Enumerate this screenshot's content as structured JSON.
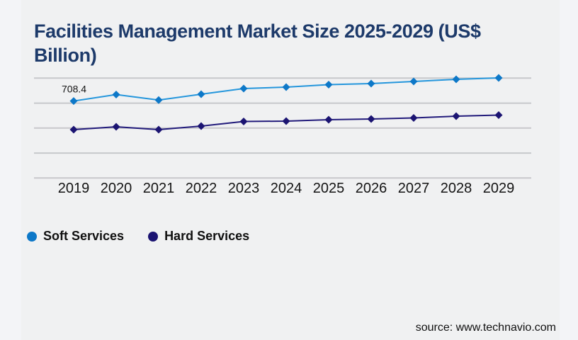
{
  "title": "Facilities Management Market Size 2025-2029 (US$\nBillion)",
  "source_label": "source: www.technavio.com",
  "colors": {
    "background": "#f3f4f7",
    "panel": "#f0f1f2",
    "gridline": "#c7c8cb",
    "title_text": "#1d3a6a",
    "soft_line": "#2496dc",
    "soft_marker": "#0d78c8",
    "hard_line": "#221b7b",
    "hard_marker": "#1b1472",
    "label_text": "#141414"
  },
  "legend": {
    "items": [
      {
        "label": "Soft Services",
        "color": "#0d78c8"
      },
      {
        "label": "Hard Services",
        "color": "#1b1472"
      }
    ],
    "position": "bottom-left"
  },
  "chart_data": {
    "type": "line",
    "title": "Facilities Management Market Size 2025-2029 (US$ Billion)",
    "xlabel": "",
    "ylabel": "",
    "x": [
      2019,
      2020,
      2021,
      2022,
      2023,
      2024,
      2025,
      2026,
      2027,
      2028,
      2029
    ],
    "series": [
      {
        "name": "Soft Services",
        "color": "#2496dc",
        "marker_color": "#0d78c8",
        "marker": "diamond",
        "values": [
          708.4,
          734.2,
          712.0,
          735.6,
          758.3,
          764.0,
          773.9,
          778.2,
          786.7,
          795.2,
          800.9
        ]
      },
      {
        "name": "Hard Services",
        "color": "#221b7b",
        "marker_color": "#1b1472",
        "marker": "diamond",
        "values": [
          593.8,
          605.1,
          593.8,
          608.0,
          626.4,
          627.8,
          633.5,
          636.3,
          640.6,
          647.7,
          651.9
        ]
      }
    ],
    "annotations": [
      {
        "series": "Soft Services",
        "x": 2019,
        "label": "708.4"
      }
    ],
    "y_axis": {
      "visible_labels": false,
      "gridline_values": [
        400,
        500,
        600,
        700,
        800
      ],
      "ylim": [
        400,
        810
      ]
    },
    "grid": true,
    "legend_position": "bottom-left",
    "note": "Only the 2019 Soft Services point is labeled (708.4); other values estimated from gridlines."
  }
}
